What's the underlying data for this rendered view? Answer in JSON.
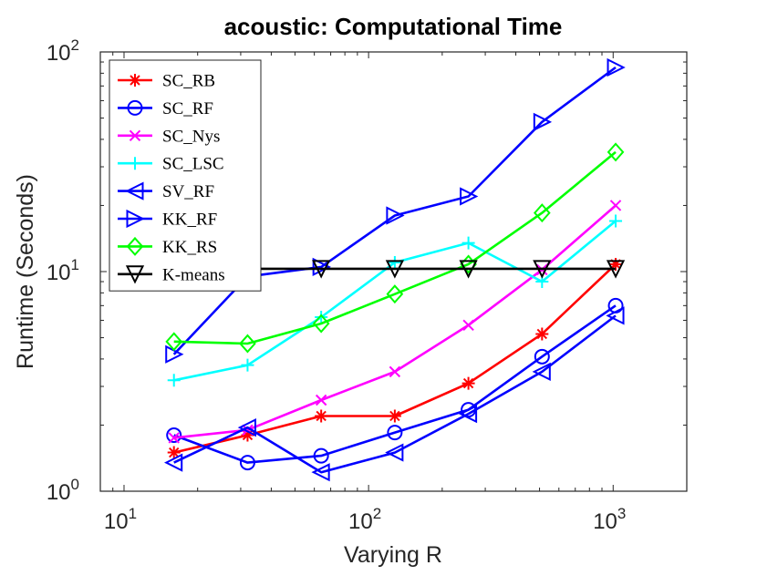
{
  "chart_data": {
    "type": "line",
    "title": "acoustic: Computational Time",
    "xlabel": "Varying R",
    "ylabel": "Runtime (Seconds)",
    "xscale": "log",
    "yscale": "log",
    "xlim": [
      8,
      2000
    ],
    "ylim": [
      1,
      100
    ],
    "x": [
      16,
      32,
      64,
      128,
      256,
      512,
      1024
    ],
    "x_ticks": [
      {
        "base": "10",
        "exp": "1",
        "value": 10
      },
      {
        "base": "10",
        "exp": "2",
        "value": 100
      },
      {
        "base": "10",
        "exp": "3",
        "value": 1000
      }
    ],
    "y_ticks": [
      {
        "base": "10",
        "exp": "0",
        "value": 1
      },
      {
        "base": "10",
        "exp": "1",
        "value": 10
      },
      {
        "base": "10",
        "exp": "2",
        "value": 100
      }
    ],
    "legend_position": "top-left",
    "series": [
      {
        "name": "SC_RB",
        "color": "#ff0000",
        "marker": "asterisk",
        "values": [
          1.5,
          1.8,
          2.2,
          2.2,
          3.1,
          5.2,
          10.8
        ]
      },
      {
        "name": "SC_RF",
        "color": "#0000ff",
        "marker": "circle",
        "values": [
          1.8,
          1.35,
          1.45,
          1.85,
          2.35,
          4.1,
          7.0
        ]
      },
      {
        "name": "SC_Nys",
        "color": "#ff00ff",
        "marker": "x",
        "values": [
          1.75,
          1.9,
          2.6,
          3.5,
          5.7,
          10.2,
          20.0
        ]
      },
      {
        "name": "SC_LSC",
        "color": "#00ffff",
        "marker": "plus",
        "values": [
          3.2,
          3.75,
          6.2,
          11.0,
          13.5,
          9.0,
          17.0
        ]
      },
      {
        "name": "SV_RF",
        "color": "#0000ff",
        "marker": "triangle-left",
        "values": [
          1.35,
          1.95,
          1.22,
          1.5,
          2.25,
          3.5,
          6.3
        ]
      },
      {
        "name": "KK_RF",
        "color": "#0000ff",
        "marker": "triangle-right",
        "values": [
          4.2,
          9.5,
          10.5,
          18.0,
          22.0,
          48.0,
          85.0
        ]
      },
      {
        "name": "KK_RS",
        "color": "#00ff00",
        "marker": "diamond",
        "values": [
          4.8,
          4.7,
          5.8,
          7.9,
          10.8,
          18.5,
          35.0
        ]
      },
      {
        "name": "K-means",
        "color": "#000000",
        "marker": "triangle-down",
        "values": [
          10.3,
          10.3,
          10.3,
          10.3,
          10.3,
          10.3,
          10.3
        ]
      }
    ]
  }
}
